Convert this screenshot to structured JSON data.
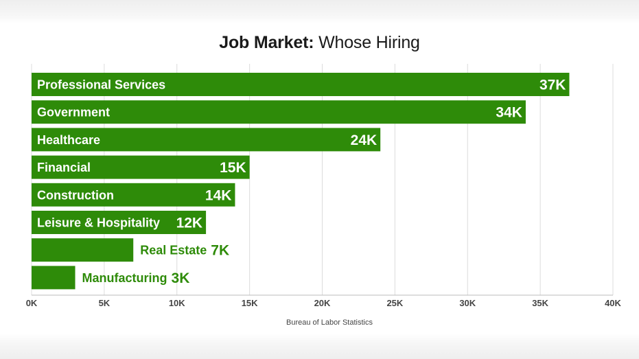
{
  "title": {
    "bold": "Job Market:",
    "normal": "Whose Hiring"
  },
  "source": "Bureau of Labor Statistics",
  "colors": {
    "bar": "#2e8b09",
    "bar_label_inside": "#ffffff",
    "bar_label_outside": "#2e8b09",
    "grid": "#dcdcdc",
    "axis_text": "#444444"
  },
  "chart_data": {
    "type": "bar",
    "orientation": "horizontal",
    "categories": [
      "Professional Services",
      "Government",
      "Healthcare",
      "Financial",
      "Construction",
      "Leisure & Hospitality",
      "Real Estate",
      "Manufacturing"
    ],
    "values": [
      37000,
      34000,
      24000,
      15000,
      14000,
      12000,
      7000,
      3000
    ],
    "value_labels": [
      "37K",
      "34K",
      "24K",
      "15K",
      "14K",
      "12K",
      "7K",
      "3K"
    ],
    "xlim": [
      0,
      40000
    ],
    "xticks": [
      0,
      5000,
      10000,
      15000,
      20000,
      25000,
      30000,
      35000,
      40000
    ],
    "xtick_labels": [
      "0K",
      "5K",
      "10K",
      "15K",
      "20K",
      "25K",
      "30K",
      "35K",
      "40K"
    ],
    "grid": true,
    "legend": "none"
  }
}
